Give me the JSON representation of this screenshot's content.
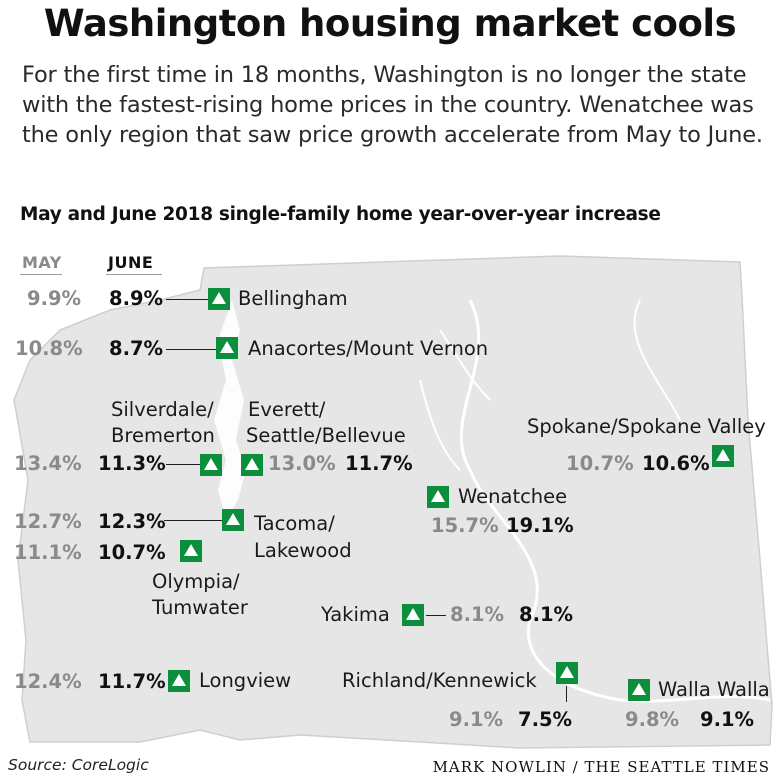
{
  "headline": "Washington housing market cools",
  "intro": "For the first time in 18 months, Washington is no longer the state with the fastest-rising home prices in the country. Wenatchee was the only region that saw price growth accelerate from May to June.",
  "subhead": "May and June 2018 single-family home year-over-year increase",
  "columns": {
    "may": "MAY",
    "june": "JUNE"
  },
  "colors": {
    "marker": "#0c8f3c",
    "map_fill": "#e6e6e6",
    "map_outline": "#cfcfcf",
    "may_text": "#8a8a8a"
  },
  "regions": [
    {
      "name": "Bellingham",
      "may": "9.9%",
      "june": "8.9%",
      "trend": "up"
    },
    {
      "name": "Anacortes/Mount Vernon",
      "may": "10.8%",
      "june": "8.7%",
      "trend": "up"
    },
    {
      "name_line1": "Silverdale/",
      "name_line2": "Bremerton",
      "may": "13.4%",
      "june": "11.3%",
      "trend": "up"
    },
    {
      "name_line1": "Everett/",
      "name_line2": "Seattle/Bellevue",
      "may": "13.0%",
      "june": "11.7%",
      "trend": "up"
    },
    {
      "name": "Spokane/Spokane Valley",
      "may": "10.7%",
      "june": "10.6%",
      "trend": "up"
    },
    {
      "name": "Wenatchee",
      "may": "15.7%",
      "june": "19.1%",
      "trend": "up"
    },
    {
      "name_line1": "Tacoma/",
      "name_line2": "Lakewood",
      "may": "12.7%",
      "june": "12.3%",
      "trend": "up"
    },
    {
      "name_line1": "Olympia/",
      "name_line2": "Tumwater",
      "may": "11.1%",
      "june": "10.7%",
      "trend": "up"
    },
    {
      "name": "Yakima",
      "may": "8.1%",
      "june": "8.1%",
      "trend": "up"
    },
    {
      "name": "Longview",
      "may": "12.4%",
      "june": "11.7%",
      "trend": "up"
    },
    {
      "name": "Richland/Kennewick",
      "may": "9.1%",
      "june": "7.5%",
      "trend": "up"
    },
    {
      "name": "Walla Walla",
      "may": "9.8%",
      "june": "9.1%",
      "trend": "up"
    }
  ],
  "source": "Source: CoreLogic",
  "credit": "MARK NOWLIN / THE SEATTLE TIMES"
}
